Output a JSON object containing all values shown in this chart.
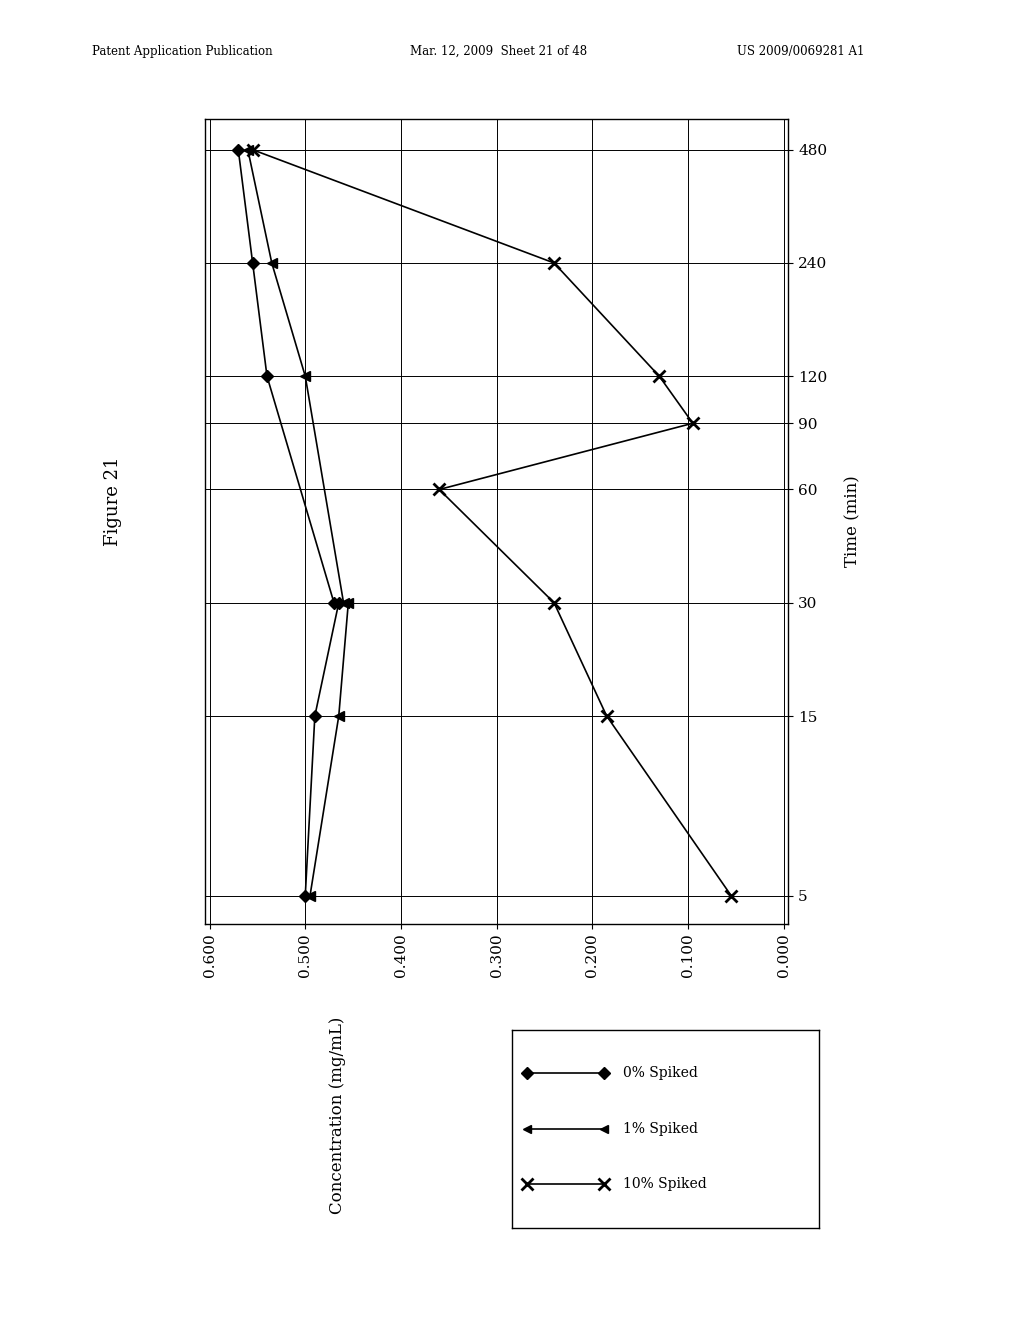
{
  "header_left": "Patent Application Publication",
  "header_mid": "Mar. 12, 2009  Sheet 21 of 48",
  "header_right": "US 2009/0069281 A1",
  "figure_label": "Figure 21",
  "time_label": "Time (min)",
  "conc_label": "Concentration (mg/mL)",
  "time_ticks": [
    5,
    15,
    30,
    60,
    90,
    120,
    240,
    480
  ],
  "conc_ticks": [
    0.0,
    0.1,
    0.2,
    0.3,
    0.4,
    0.5,
    0.6
  ],
  "series_0_label": "0% Spiked",
  "series_1_label": "1% Spiked",
  "series_2_label": "10% Spiked",
  "series_0_time": [
    5,
    15,
    30,
    30,
    120,
    240,
    480
  ],
  "series_0_conc": [
    0.5,
    0.49,
    0.465,
    0.47,
    0.54,
    0.555,
    0.57
  ],
  "series_1_time": [
    5,
    15,
    30,
    30,
    120,
    240,
    480
  ],
  "series_1_conc": [
    0.495,
    0.465,
    0.455,
    0.46,
    0.5,
    0.535,
    0.56
  ],
  "series_2_time": [
    5,
    15,
    30,
    60,
    90,
    120,
    240,
    480
  ],
  "series_2_conc": [
    0.055,
    0.185,
    0.24,
    0.36,
    0.095,
    0.13,
    0.24,
    0.555
  ],
  "background_color": "#ffffff"
}
